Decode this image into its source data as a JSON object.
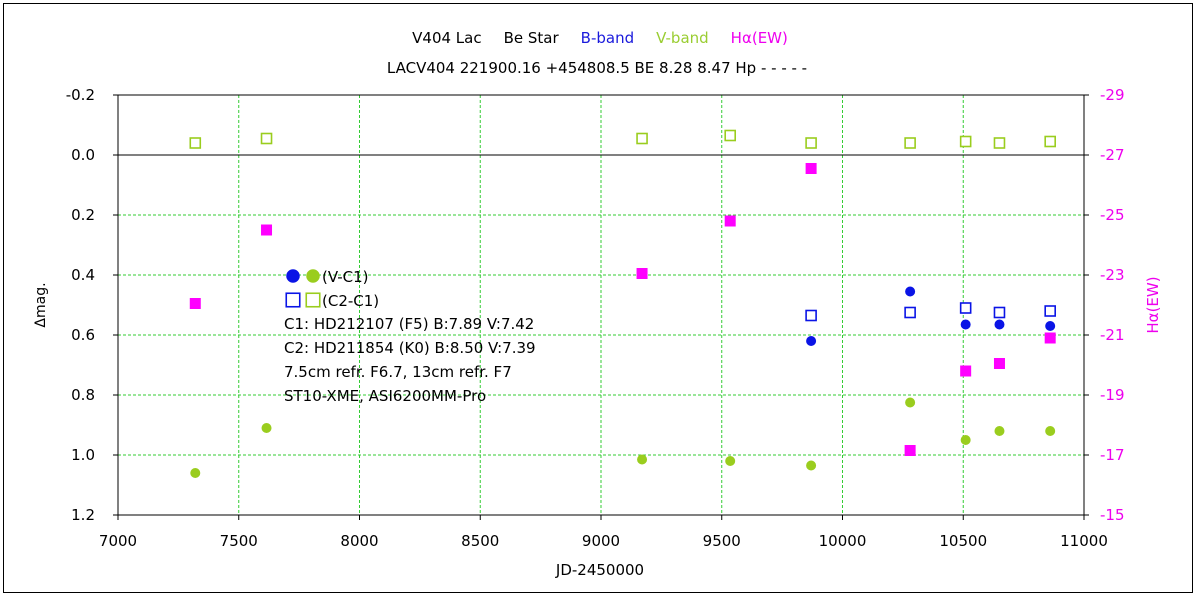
{
  "chart_data": {
    "type": "scatter",
    "title_parts": [
      {
        "text": "V404 Lac",
        "color": "#000000"
      },
      {
        "text": "Be Star",
        "color": "#000000"
      },
      {
        "text": "B-band",
        "color": "#1a1adc"
      },
      {
        "text": "V-band",
        "color": "#9acd32"
      },
      {
        "text": "Hα(EW)",
        "color": "#ee00ee"
      }
    ],
    "subtitle": "LACV404 221900.16 +454808.5 BE 8.28 8.47 Hp - - - - -",
    "xlabel": "JD-2450000",
    "ylabel": "Δmag.",
    "y2label": "Hα(EW)",
    "xlim": [
      7000,
      11000
    ],
    "ylim": [
      -0.2,
      1.2
    ],
    "y2lim": [
      -29,
      -15
    ],
    "y_inverted": true,
    "y2_inverted": true,
    "grid": true,
    "x_ticks": [
      "7000",
      "7500",
      "8000",
      "8500",
      "9000",
      "9500",
      "10000",
      "10500",
      "11000"
    ],
    "y_ticks": [
      "-0.2",
      "0.0",
      "0.2",
      "0.4",
      "0.6",
      "0.8",
      "1.0",
      "1.2"
    ],
    "y2_ticks": [
      "-29",
      "-27",
      "-25",
      "-23",
      "-21",
      "-19",
      "-17",
      "-15"
    ],
    "colors": {
      "blue": "#0a14e6",
      "green": "#9acd1e",
      "magenta": "#ff00ff",
      "grid": "#33cc33"
    },
    "series": [
      {
        "marker": "filled-circle",
        "color": "#9acd1e",
        "axis": "left",
        "points": [
          [
            7320,
            1.06
          ],
          [
            7615,
            0.91
          ],
          [
            9170,
            1.015
          ],
          [
            9535,
            1.02
          ],
          [
            9870,
            1.035
          ],
          [
            10280,
            0.825
          ],
          [
            10510,
            0.95
          ],
          [
            10650,
            0.92
          ],
          [
            10860,
            0.92
          ]
        ]
      },
      {
        "marker": "open-square",
        "color": "#9acd1e",
        "axis": "left",
        "points": [
          [
            7320,
            -0.04
          ],
          [
            7615,
            -0.055
          ],
          [
            9170,
            -0.055
          ],
          [
            9535,
            -0.065
          ],
          [
            9870,
            -0.04
          ],
          [
            10280,
            -0.04
          ],
          [
            10510,
            -0.045
          ],
          [
            10650,
            -0.04
          ],
          [
            10860,
            -0.045
          ]
        ]
      },
      {
        "marker": "filled-circle",
        "color": "#0a14e6",
        "axis": "left",
        "points": [
          [
            9870,
            0.62
          ],
          [
            10280,
            0.455
          ],
          [
            10510,
            0.565
          ],
          [
            10650,
            0.565
          ],
          [
            10860,
            0.57
          ]
        ]
      },
      {
        "marker": "open-square",
        "color": "#0a14e6",
        "axis": "left",
        "points": [
          [
            9870,
            0.535
          ],
          [
            10280,
            0.525
          ],
          [
            10510,
            0.51
          ],
          [
            10650,
            0.525
          ],
          [
            10860,
            0.52
          ]
        ]
      },
      {
        "marker": "filled-square",
        "color": "#ff00ff",
        "axis": "right",
        "points": [
          [
            7320,
            -22.05
          ],
          [
            7615,
            -24.5
          ],
          [
            9170,
            -23.05
          ],
          [
            9535,
            -24.8
          ],
          [
            9870,
            -26.55
          ],
          [
            10280,
            -17.15
          ],
          [
            10510,
            -19.8
          ],
          [
            10650,
            -20.05
          ],
          [
            10860,
            -20.9
          ]
        ]
      }
    ],
    "legend": [
      {
        "markers": [
          "filled-circle:#0a14e6",
          "filled-circle:#9acd1e"
        ],
        "text": "(V-C1)"
      },
      {
        "markers": [
          "open-square:#0a14e6",
          "open-square:#9acd1e"
        ],
        "text": "(C2-C1)"
      }
    ],
    "notes": [
      "C1: HD212107 (F5)  B:7.89  V:7.42",
      "C2: HD211854 (K0)  B:8.50  V:7.39",
      "7.5cm refr. F6.7,  13cm refr. F7",
      "ST10-XME,  ASI6200MM-Pro"
    ]
  }
}
